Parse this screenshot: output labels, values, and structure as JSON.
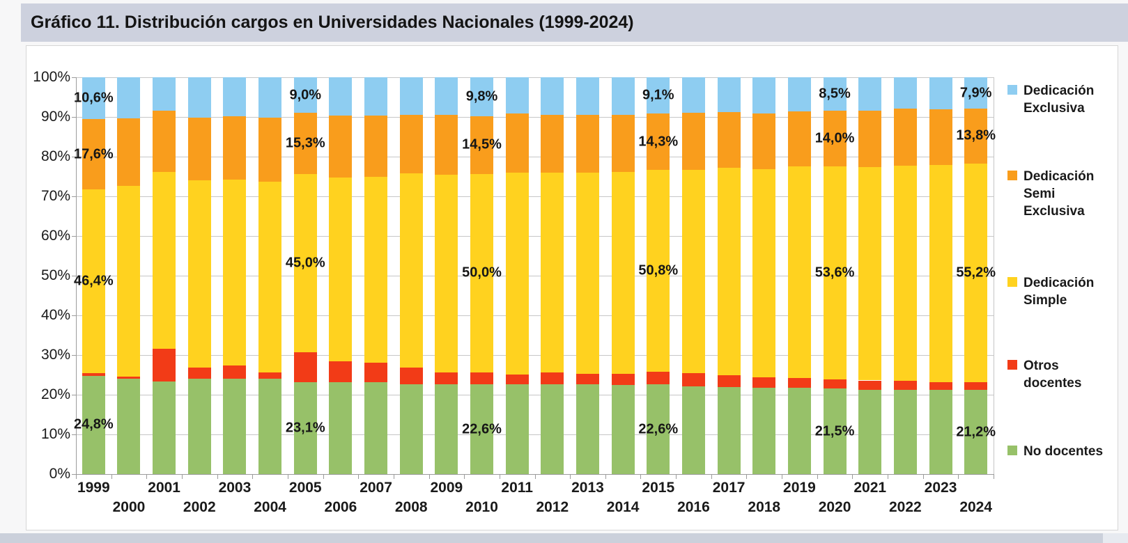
{
  "title": "Gráfico 11. Distribución cargos en Universidades Nacionales (1999-2024)",
  "chart_data": {
    "type": "bar",
    "subtype": "stacked-100-percent-column",
    "title": "Gráfico 11. Distribución cargos en Universidades Nacionales (1999-2024)",
    "xlabel": "",
    "ylabel": "",
    "ylim": [
      0,
      100
    ],
    "y_ticks": [
      "0%",
      "10%",
      "20%",
      "30%",
      "40%",
      "50%",
      "60%",
      "70%",
      "80%",
      "90%",
      "100%"
    ],
    "grid": true,
    "legend_position": "right",
    "categories": [
      1999,
      2000,
      2001,
      2002,
      2003,
      2004,
      2005,
      2006,
      2007,
      2008,
      2009,
      2010,
      2011,
      2012,
      2013,
      2014,
      2015,
      2016,
      2017,
      2018,
      2019,
      2020,
      2021,
      2022,
      2023,
      2024
    ],
    "series": [
      {
        "name": "No docentes",
        "color": "#97c169",
        "values": [
          24.8,
          24.0,
          23.4,
          24.0,
          24.1,
          24.0,
          23.1,
          23.1,
          23.1,
          22.7,
          22.7,
          22.6,
          22.7,
          22.6,
          22.7,
          22.5,
          22.6,
          22.1,
          22.0,
          21.8,
          21.7,
          21.5,
          21.2,
          21.2,
          21.3,
          21.2
        ]
      },
      {
        "name": "Otros docentes",
        "color": "#f23b17",
        "values": [
          0.6,
          0.5,
          8.2,
          2.9,
          3.2,
          1.7,
          7.6,
          5.3,
          5.0,
          4.2,
          2.9,
          3.1,
          2.4,
          3.1,
          2.5,
          2.7,
          3.2,
          3.3,
          2.9,
          2.6,
          2.6,
          2.4,
          2.4,
          2.3,
          1.9,
          1.9
        ]
      },
      {
        "name": "Dedicación Simple",
        "color": "#ffd21f",
        "values": [
          46.4,
          48.1,
          44.5,
          47.1,
          47.0,
          48.0,
          45.0,
          46.3,
          46.9,
          48.9,
          49.8,
          50.0,
          50.8,
          50.3,
          50.7,
          50.9,
          50.8,
          51.2,
          52.3,
          52.5,
          53.2,
          53.6,
          53.7,
          54.2,
          54.7,
          55.2
        ]
      },
      {
        "name": "Dedicación Semi Exclusiva",
        "color": "#f99d1c",
        "values": [
          17.6,
          17.0,
          15.4,
          15.9,
          15.8,
          16.1,
          15.3,
          15.7,
          15.4,
          14.7,
          15.2,
          14.5,
          14.9,
          14.5,
          14.6,
          14.5,
          14.3,
          14.4,
          14.0,
          14.0,
          13.9,
          14.0,
          14.3,
          14.4,
          14.0,
          13.8
        ]
      },
      {
        "name": "Dedicación Exclusiva",
        "color": "#8ecdf1",
        "values": [
          10.6,
          10.4,
          8.5,
          10.1,
          9.9,
          10.2,
          9.0,
          9.6,
          9.6,
          9.5,
          9.4,
          9.8,
          9.2,
          9.5,
          9.5,
          9.4,
          9.1,
          9.0,
          8.8,
          9.1,
          8.6,
          8.5,
          8.4,
          7.9,
          8.1,
          7.9
        ]
      }
    ],
    "data_labels": [
      {
        "year": 1999,
        "labels": {
          "Dedicación Exclusiva": "10,6%",
          "Dedicación Semi Exclusiva": "17,6%",
          "Dedicación Simple": "46,4%",
          "No docentes": "24,8%"
        }
      },
      {
        "year": 2005,
        "labels": {
          "Dedicación Exclusiva": "9,0%",
          "Dedicación Semi Exclusiva": "15,3%",
          "Dedicación Simple": "45,0%",
          "No docentes": "23,1%"
        }
      },
      {
        "year": 2010,
        "labels": {
          "Dedicación Exclusiva": "9,8%",
          "Dedicación Semi Exclusiva": "14,5%",
          "Dedicación Simple": "50,0%",
          "No docentes": "22,6%"
        }
      },
      {
        "year": 2015,
        "labels": {
          "Dedicación Exclusiva": "9,1%",
          "Dedicación Semi Exclusiva": "14,3%",
          "Dedicación Simple": "50,8%",
          "No docentes": "22,6%"
        }
      },
      {
        "year": 2020,
        "labels": {
          "Dedicación Exclusiva": "8,5%",
          "Dedicación Semi Exclusiva": "14,0%",
          "Dedicación Simple": "53,6%",
          "No docentes": "21,5%"
        }
      },
      {
        "year": 2024,
        "labels": {
          "Dedicación Exclusiva": "7,9%",
          "Dedicación Semi Exclusiva": "13,8%",
          "Dedicación Simple": "55,2%",
          "No docentes": "21,2%"
        }
      }
    ]
  },
  "legend": {
    "items": [
      {
        "label": "Dedicación Exclusiva",
        "color": "#8ecdf1"
      },
      {
        "label": "Dedicación Semi Exclusiva",
        "color": "#f99d1c"
      },
      {
        "label": "Dedicación Simple",
        "color": "#ffd21f"
      },
      {
        "label": "Otros docentes",
        "color": "#f23b17"
      },
      {
        "label": "No docentes",
        "color": "#97c169"
      }
    ]
  },
  "colors": {
    "title_bar": "#cdd1de",
    "gridline": "#c6c6c6",
    "axis": "#9b9b9b",
    "panel_bg": "#ffffff",
    "bottom_strip": "#cbd0db"
  }
}
